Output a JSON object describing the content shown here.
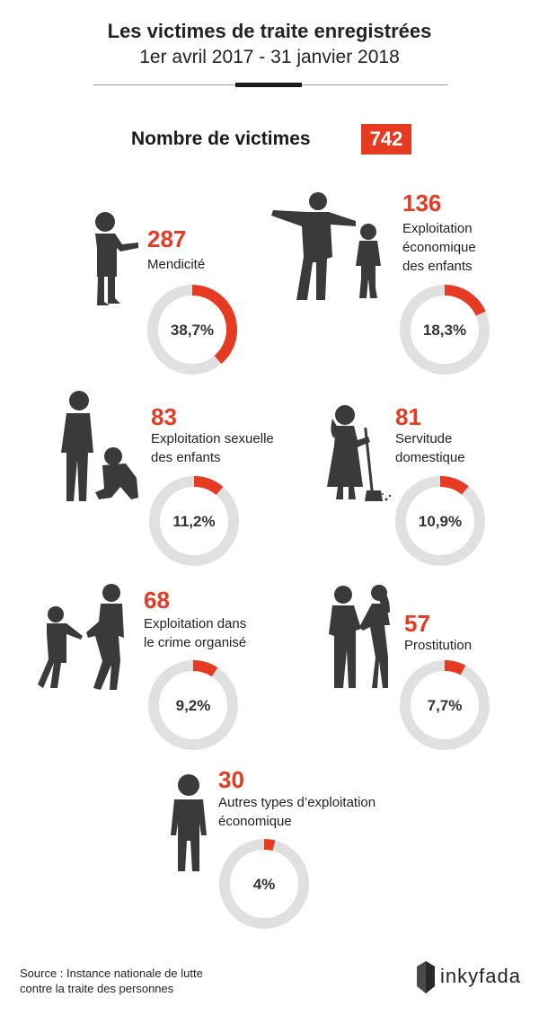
{
  "header": {
    "title": "Les victimes de traite enregistrées",
    "subtitle": "1er avril 2017 - 31 janvier 2018"
  },
  "total": {
    "label": "Nombre de victimes",
    "value": "742"
  },
  "colors": {
    "accent": "#e73a23",
    "ring_track": "#e0e0e0",
    "silhouette": "#3a3a3a"
  },
  "chart_data": {
    "type": "pie",
    "title": "Les victimes de traite enregistrées",
    "subtitle": "1er avril 2017 - 31 janvier 2018",
    "total": 742,
    "categories": [
      "Mendicité",
      "Exploitation économique des enfants",
      "Exploitation sexuelle des enfants",
      "Servitude domestique",
      "Exploitation dans le crime organisé",
      "Prostitution",
      "Autres types d’exploitation économique"
    ],
    "values": [
      287,
      136,
      83,
      81,
      68,
      57,
      30
    ],
    "percentages": [
      38.7,
      18.3,
      11.2,
      10.9,
      9.2,
      7.7,
      4
    ]
  },
  "items": [
    {
      "count": "287",
      "label_lines": [
        "Mendicité"
      ],
      "pct_label": "38,7%",
      "fraction": 0.387,
      "icon": "begging-child-icon"
    },
    {
      "count": "136",
      "label_lines": [
        "Exploitation",
        "économique",
        "des enfants"
      ],
      "pct_label": "18,3%",
      "fraction": 0.183,
      "icon": "man-pointing-at-child-icon"
    },
    {
      "count": "83",
      "label_lines": [
        "Exploitation sexuelle",
        "des enfants"
      ],
      "pct_label": "11,2%",
      "fraction": 0.112,
      "icon": "man-and-crouching-child-icon"
    },
    {
      "count": "81",
      "label_lines": [
        "Servitude",
        "domestique"
      ],
      "pct_label": "10,9%",
      "fraction": 0.109,
      "icon": "girl-sweeping-icon"
    },
    {
      "count": "68",
      "label_lines": [
        "Exploitation dans",
        "le crime organisé"
      ],
      "pct_label": "9,2%",
      "fraction": 0.092,
      "icon": "child-and-woman-icon"
    },
    {
      "count": "57",
      "label_lines": [
        "Prostitution"
      ],
      "pct_label": "7,7%",
      "fraction": 0.077,
      "icon": "man-and-woman-icon"
    },
    {
      "count": "30",
      "label_lines": [
        "Autres types d’exploitation",
        "économique"
      ],
      "pct_label": "4%",
      "fraction": 0.04,
      "icon": "standing-child-icon"
    }
  ],
  "footer": {
    "source_lines": [
      "Source : Instance nationale de lutte",
      "contre la traite des personnes"
    ],
    "logo_text": "inkyfada"
  }
}
